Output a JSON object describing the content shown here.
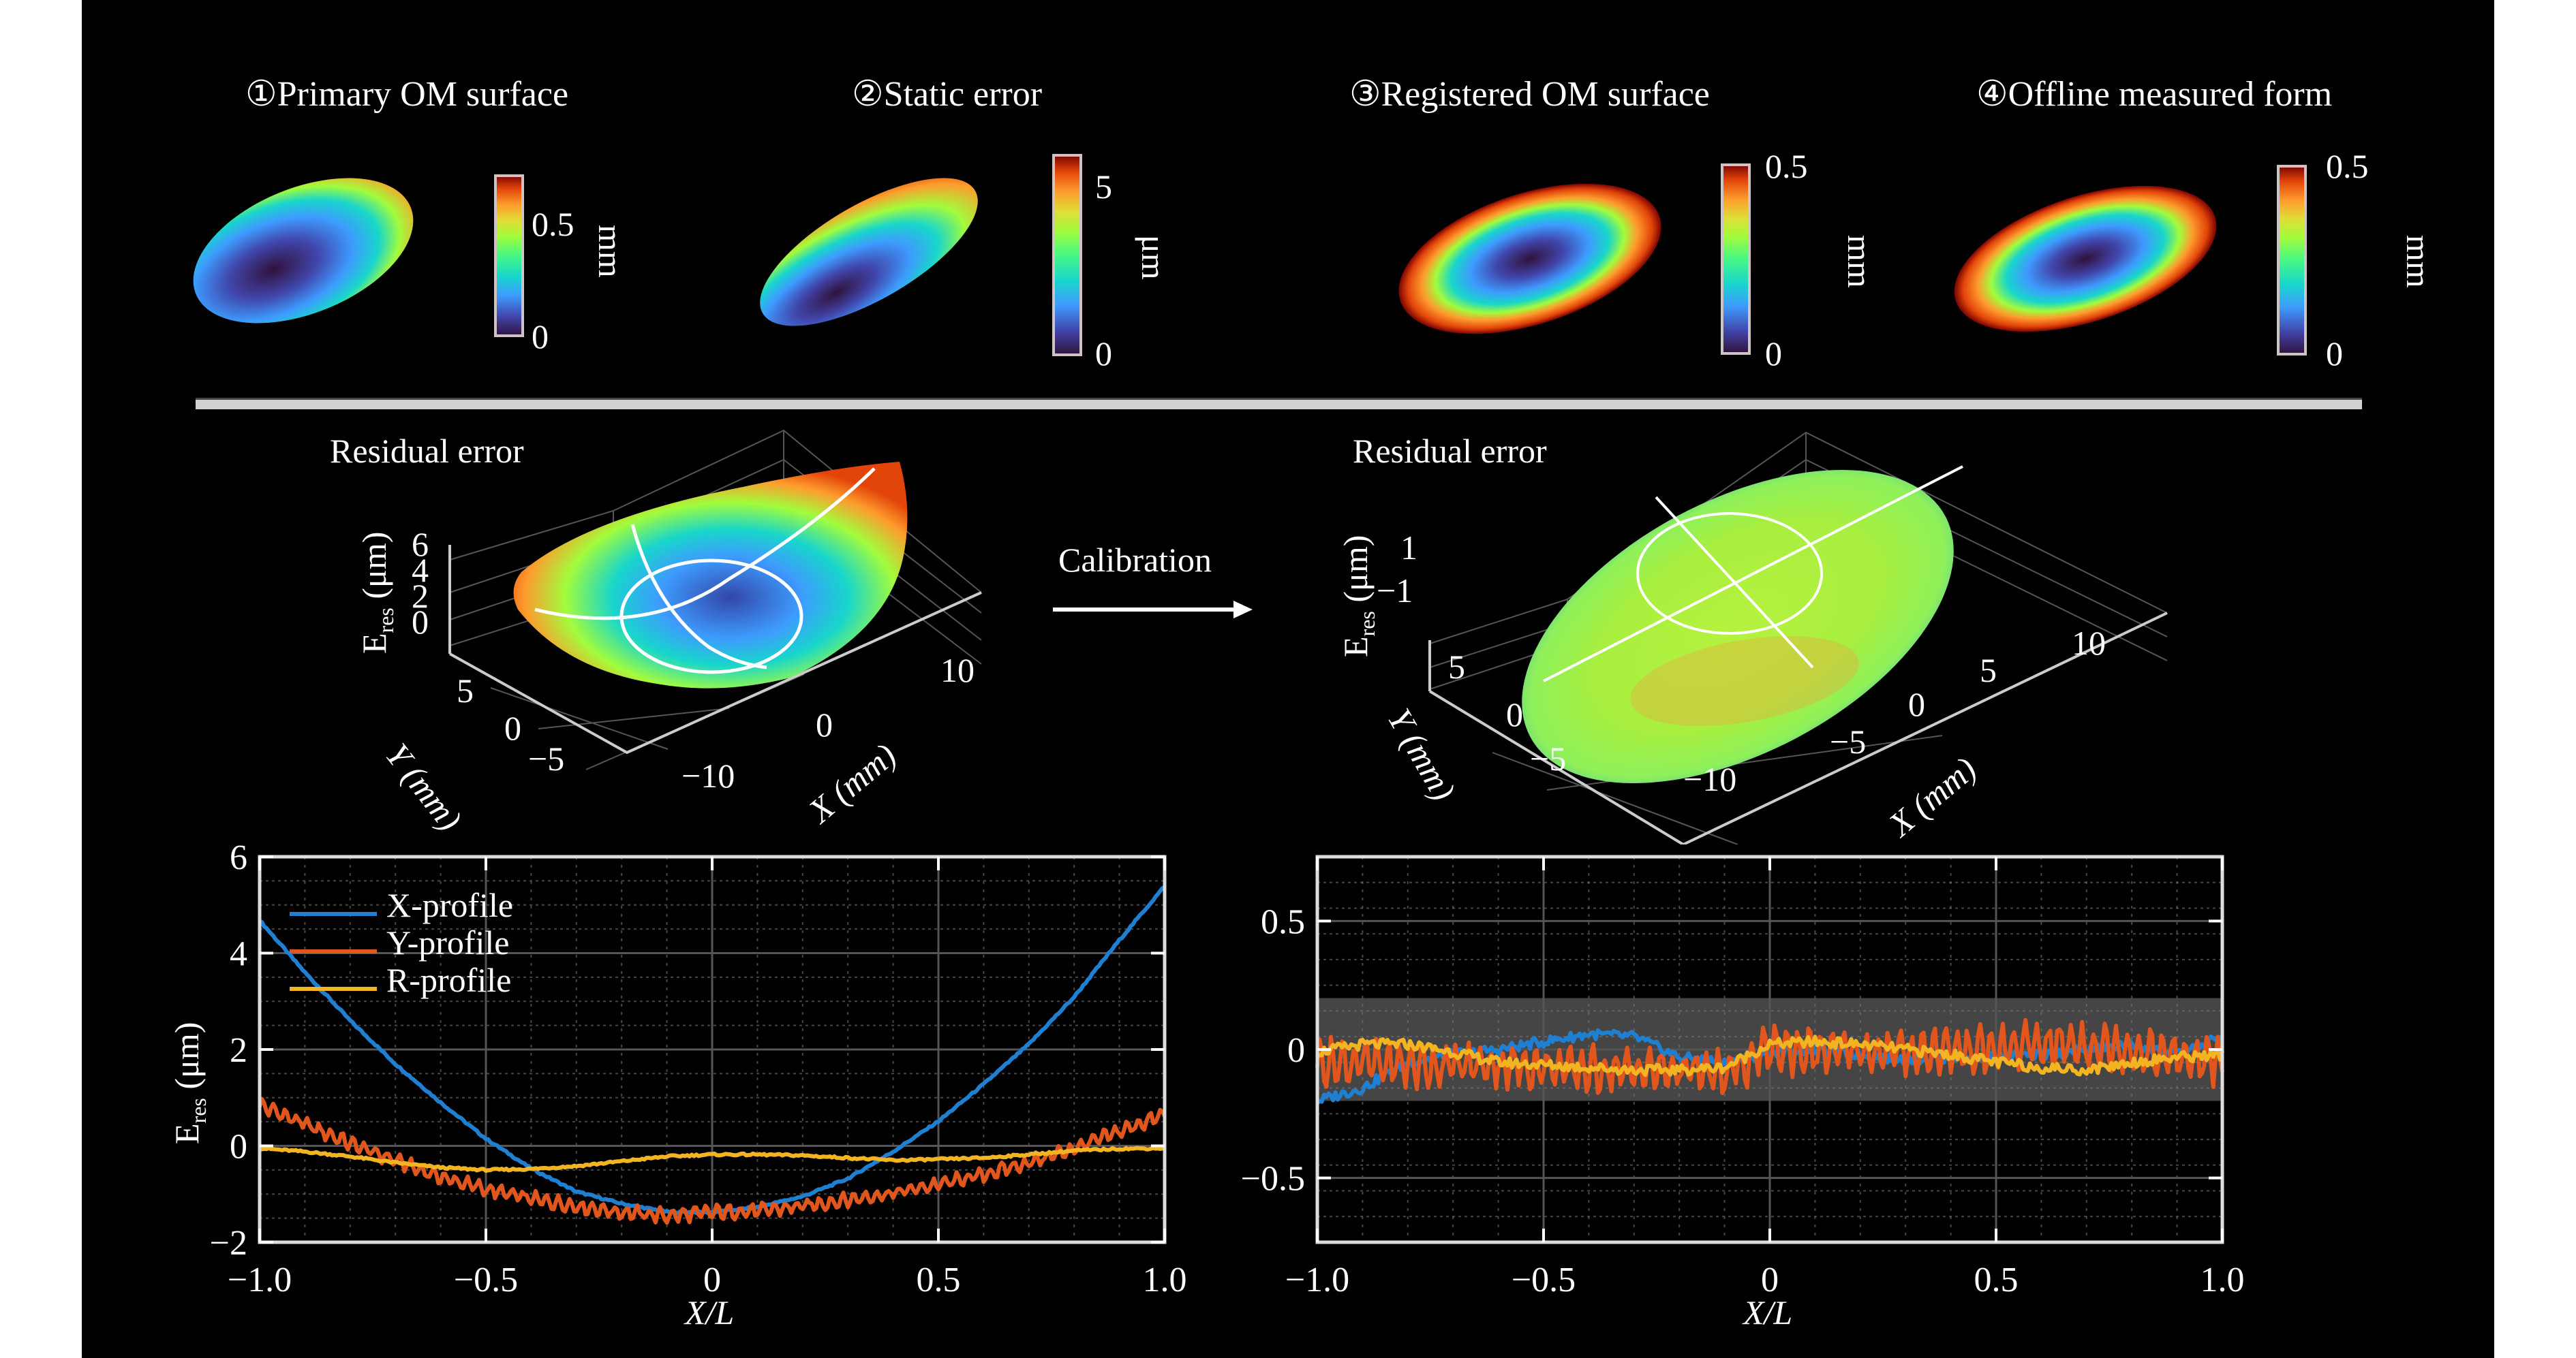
{
  "top_row": {
    "panels": [
      {
        "title": "①Primary OM surface",
        "colorbar": {
          "ticks": [
            "0.5",
            "0"
          ],
          "unit": "mm",
          "range": [
            0,
            0.7
          ]
        }
      },
      {
        "title": "②Static error",
        "colorbar": {
          "ticks": [
            "5",
            "0"
          ],
          "unit": "μm",
          "range": [
            0,
            6
          ]
        }
      },
      {
        "title": "③Registered OM surface",
        "colorbar": {
          "ticks": [
            "0.5",
            "0"
          ],
          "unit": "mm",
          "range": [
            0,
            0.5
          ]
        }
      },
      {
        "title": "④Offline measured form",
        "colorbar": {
          "ticks": [
            "0.5",
            "0"
          ],
          "unit": "mm",
          "range": [
            0,
            0.5
          ]
        }
      }
    ]
  },
  "middle_row": {
    "arrow_label": "Calibration",
    "left_3d": {
      "title": "Residual error",
      "zlabel_main": "E",
      "zlabel_sub": "res",
      "zlabel_unit": " (μm)",
      "zticks": [
        "6",
        "4",
        "2",
        "0"
      ],
      "yticks": [
        "5",
        "0",
        "−5"
      ],
      "xticks": [
        "−10",
        "0",
        "10"
      ],
      "ylabel": "Y (mm)",
      "xlabel": "X (mm)"
    },
    "right_3d": {
      "title": "Residual error",
      "zlabel_main": "E",
      "zlabel_sub": "res",
      "zlabel_unit": " (μm)",
      "zticks": [
        "1",
        "−1"
      ],
      "yticks": [
        "5",
        "0",
        "−5"
      ],
      "xticks": [
        "−10",
        "−5",
        "0",
        "5",
        "10"
      ],
      "ylabel": "Y (mm)",
      "xlabel": "X (mm)"
    }
  },
  "colors": {
    "x_profile": "#1f7fd0",
    "y_profile": "#e0561c",
    "r_profile": "#f2b422",
    "band": "#454545",
    "separator": "#d0d0d0"
  },
  "chart_data": [
    {
      "type": "line",
      "title": "",
      "xlabel": "X/L",
      "ylabel_main": "E",
      "ylabel_sub": "res",
      "ylabel_unit": " (μm)",
      "xlim": [
        -1.0,
        1.0
      ],
      "ylim": [
        -2,
        6
      ],
      "xticks": [
        -1.0,
        -0.5,
        0,
        0.5,
        1.0
      ],
      "xtick_labels": [
        "−1.0",
        "−0.5",
        "0",
        "0.5",
        "1.0"
      ],
      "yticks": [
        -2,
        0,
        2,
        4,
        6
      ],
      "ytick_labels": [
        "−2",
        "0",
        "2",
        "4",
        "6"
      ],
      "grid": true,
      "legend": "top-left",
      "x": [
        -1.0,
        -0.9,
        -0.8,
        -0.7,
        -0.6,
        -0.5,
        -0.4,
        -0.3,
        -0.2,
        -0.1,
        0.0,
        0.1,
        0.2,
        0.3,
        0.4,
        0.5,
        0.6,
        0.7,
        0.8,
        0.9,
        1.0
      ],
      "series": [
        {
          "name": "X-profile",
          "values": [
            4.68,
            3.6,
            2.6,
            1.7,
            0.9,
            0.15,
            -0.47,
            -0.95,
            -1.2,
            -1.37,
            -1.38,
            -1.27,
            -1.05,
            -0.68,
            -0.12,
            0.51,
            1.28,
            2.11,
            3.09,
            4.27,
            5.39
          ]
        },
        {
          "name": "Y-profile",
          "values": [
            0.85,
            0.45,
            0.05,
            -0.3,
            -0.65,
            -0.9,
            -1.1,
            -1.25,
            -1.38,
            -1.45,
            -1.38,
            -1.35,
            -1.25,
            -1.12,
            -0.98,
            -0.8,
            -0.6,
            -0.35,
            -0.05,
            0.3,
            0.65
          ]
        },
        {
          "name": "R-profile",
          "values": [
            -0.05,
            -0.12,
            -0.22,
            -0.35,
            -0.45,
            -0.5,
            -0.48,
            -0.42,
            -0.32,
            -0.22,
            -0.18,
            -0.18,
            -0.2,
            -0.25,
            -0.3,
            -0.28,
            -0.25,
            -0.18,
            -0.1,
            -0.06,
            -0.05
          ]
        }
      ]
    },
    {
      "type": "line",
      "title": "",
      "xlabel": "X/L",
      "ylabel": "",
      "xlim": [
        -1.0,
        1.0
      ],
      "ylim": [
        -0.75,
        0.75
      ],
      "xticks": [
        -1.0,
        -0.5,
        0,
        0.5,
        1.0
      ],
      "xtick_labels": [
        "−1.0",
        "−0.5",
        "0",
        "0.5",
        "1.0"
      ],
      "yticks": [
        -0.5,
        0,
        0.5
      ],
      "ytick_labels": [
        "−0.5",
        "0",
        "0.5"
      ],
      "grid": true,
      "tolerance_band": [
        -0.2,
        0.2
      ],
      "x": [
        -1.0,
        -0.9,
        -0.8,
        -0.7,
        -0.6,
        -0.5,
        -0.4,
        -0.3,
        -0.2,
        -0.1,
        0.0,
        0.1,
        0.2,
        0.3,
        0.4,
        0.5,
        0.6,
        0.7,
        0.8,
        0.9,
        1.0
      ],
      "series": [
        {
          "name": "X-profile",
          "values": [
            -0.2,
            -0.15,
            -0.05,
            -0.02,
            0.0,
            0.03,
            0.06,
            0.05,
            -0.03,
            -0.05,
            -0.01,
            0.0,
            -0.02,
            -0.04,
            -0.03,
            -0.03,
            -0.02,
            0.0,
            0.02,
            -0.02,
            0.05
          ]
        },
        {
          "name": "Y-profile",
          "values": [
            -0.05,
            -0.05,
            -0.06,
            -0.06,
            -0.06,
            -0.07,
            -0.08,
            -0.08,
            -0.08,
            -0.1,
            0.0,
            -0.01,
            -0.01,
            -0.01,
            0.0,
            0.0,
            0.02,
            0.02,
            0.0,
            -0.03,
            -0.05
          ]
        },
        {
          "name": "R-profile",
          "values": [
            -0.01,
            0.02,
            0.02,
            -0.01,
            -0.05,
            -0.06,
            -0.07,
            -0.08,
            -0.08,
            -0.07,
            0.02,
            0.03,
            0.02,
            0.0,
            -0.02,
            -0.05,
            -0.07,
            -0.08,
            -0.05,
            -0.03,
            -0.02
          ]
        }
      ]
    }
  ]
}
